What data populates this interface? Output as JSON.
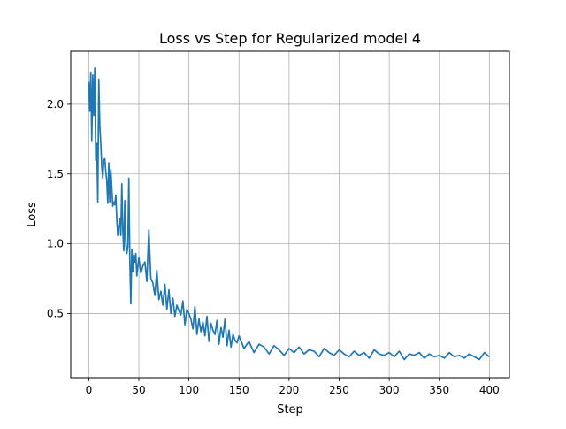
{
  "chart_data": {
    "type": "line",
    "title": "Loss vs Step for Regularized model 4",
    "xlabel": "Step",
    "ylabel": "Loss",
    "xlim": [
      -18,
      420
    ],
    "ylim": [
      0.04,
      2.38
    ],
    "grid": true,
    "legend": "none",
    "line_color": "#1f77b4",
    "x_ticks": [
      0,
      50,
      100,
      150,
      200,
      250,
      300,
      350,
      400
    ],
    "y_ticks": [
      0.5,
      1.0,
      1.5,
      2.0
    ],
    "x_tick_labels": [
      "0",
      "50",
      "100",
      "150",
      "200",
      "250",
      "300",
      "350",
      "400"
    ],
    "y_tick_labels": [
      "0.5",
      "1.0",
      "1.5",
      "2.0"
    ],
    "series": [
      {
        "x": [
          0,
          1,
          2,
          3,
          4,
          5,
          6,
          7,
          8,
          9,
          10,
          11,
          12,
          13,
          14,
          15,
          16,
          17,
          18,
          19,
          20,
          21,
          22,
          23,
          24,
          25,
          26,
          27,
          28,
          29,
          30,
          31,
          32,
          33,
          34,
          35,
          36,
          37,
          38,
          39,
          40,
          41,
          42,
          43,
          44,
          45,
          46,
          47,
          48,
          49,
          50,
          52,
          54,
          56,
          58,
          60,
          62,
          64,
          66,
          68,
          70,
          72,
          74,
          76,
          78,
          80,
          82,
          84,
          86,
          88,
          90,
          92,
          94,
          96,
          98,
          100,
          102,
          104,
          106,
          108,
          110,
          112,
          114,
          116,
          118,
          120,
          122,
          124,
          126,
          128,
          130,
          132,
          134,
          136,
          138,
          140,
          142,
          144,
          146,
          148,
          150,
          155,
          160,
          165,
          170,
          175,
          180,
          185,
          190,
          195,
          200,
          205,
          210,
          215,
          220,
          225,
          230,
          235,
          240,
          245,
          250,
          255,
          260,
          265,
          270,
          275,
          280,
          285,
          290,
          295,
          300,
          305,
          310,
          315,
          320,
          325,
          330,
          335,
          340,
          345,
          350,
          355,
          360,
          365,
          370,
          375,
          380,
          385,
          390,
          395,
          400
        ],
        "y": [
          2.16,
          1.95,
          2.23,
          1.74,
          2.21,
          1.92,
          2.26,
          1.6,
          1.72,
          1.3,
          2.18,
          1.85,
          1.72,
          1.55,
          1.47,
          1.6,
          1.61,
          1.52,
          1.45,
          1.29,
          1.58,
          1.3,
          1.53,
          1.4,
          1.27,
          1.3,
          1.28,
          1.35,
          1.17,
          1.06,
          1.12,
          1.18,
          1.06,
          1.43,
          1.1,
          0.95,
          1.31,
          1.0,
          0.93,
          0.98,
          1.47,
          0.88,
          0.57,
          0.96,
          0.8,
          0.92,
          0.87,
          0.93,
          0.77,
          0.84,
          0.9,
          0.79,
          0.84,
          0.87,
          0.73,
          1.1,
          0.75,
          0.72,
          0.63,
          0.81,
          0.6,
          0.66,
          0.56,
          0.71,
          0.53,
          0.67,
          0.5,
          0.61,
          0.48,
          0.56,
          0.52,
          0.49,
          0.59,
          0.42,
          0.53,
          0.5,
          0.46,
          0.39,
          0.55,
          0.35,
          0.46,
          0.37,
          0.44,
          0.34,
          0.48,
          0.3,
          0.43,
          0.38,
          0.35,
          0.45,
          0.28,
          0.4,
          0.33,
          0.46,
          0.27,
          0.38,
          0.26,
          0.35,
          0.31,
          0.29,
          0.34,
          0.25,
          0.3,
          0.22,
          0.28,
          0.26,
          0.21,
          0.27,
          0.24,
          0.2,
          0.25,
          0.22,
          0.26,
          0.21,
          0.24,
          0.23,
          0.19,
          0.25,
          0.22,
          0.2,
          0.24,
          0.21,
          0.19,
          0.23,
          0.2,
          0.22,
          0.18,
          0.24,
          0.21,
          0.2,
          0.22,
          0.19,
          0.23,
          0.17,
          0.21,
          0.2,
          0.22,
          0.18,
          0.21,
          0.19,
          0.2,
          0.18,
          0.22,
          0.19,
          0.2,
          0.18,
          0.21,
          0.19,
          0.17,
          0.22,
          0.19
        ]
      }
    ]
  }
}
